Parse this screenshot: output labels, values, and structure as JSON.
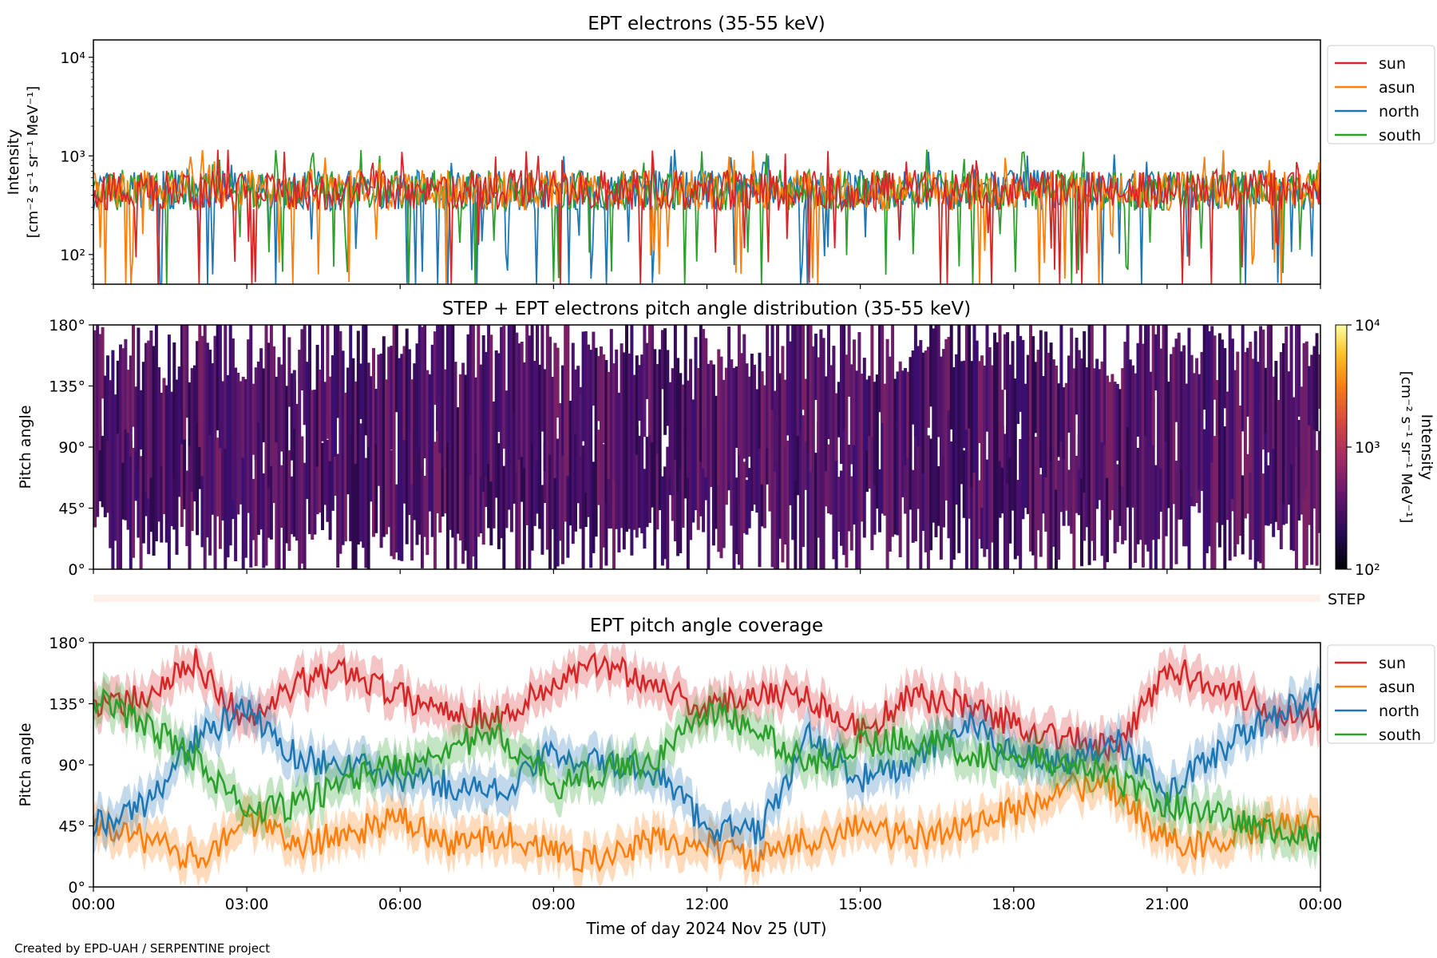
{
  "figure": {
    "footer": "Created by EPD-UAH / SERPENTINE project",
    "xlabel": "Time of day 2024 Nov 25 (UT)",
    "x_ticks": [
      "00:00",
      "03:00",
      "06:00",
      "09:00",
      "12:00",
      "15:00",
      "18:00",
      "21:00",
      "00:00"
    ]
  },
  "colors": {
    "sun": "#d62728",
    "asun": "#ff7f0e",
    "north": "#1f77b4",
    "south": "#2ca02c"
  },
  "chart_data": [
    {
      "type": "line",
      "title": "EPT electrons (35-55 keV)",
      "ylabel": "Intensity",
      "ylabel_unit": "[cm⁻² s⁻¹ sr⁻¹ MeV⁻¹]",
      "yscale": "log",
      "ylim": [
        50,
        15000
      ],
      "y_ticks": [
        "10²",
        "10³",
        "10⁴"
      ],
      "x_range_hours": [
        0,
        24
      ],
      "legend": [
        "sun",
        "asun",
        "north",
        "south"
      ],
      "legend_position": "outside-right",
      "series_typical_level": 450,
      "series_range": [
        50,
        1200
      ]
    },
    {
      "type": "heatmap",
      "title": "STEP + EPT electrons pitch angle distribution (35-55 keV)",
      "ylabel": "Pitch angle",
      "ylim": [
        0,
        180
      ],
      "y_ticks": [
        "0°",
        "45°",
        "90°",
        "135°",
        "180°"
      ],
      "colorbar_label": "Intensity",
      "colorbar_unit": "[cm⁻² s⁻¹ sr⁻¹ MeV⁻¹]",
      "colorbar_ticks": [
        "10²",
        "10³",
        "10⁴"
      ],
      "colormap": "inferno",
      "step_label": "STEP"
    },
    {
      "type": "line",
      "title": "EPT pitch angle coverage",
      "ylabel": "Pitch angle",
      "ylim": [
        0,
        180
      ],
      "y_ticks": [
        "0°",
        "45°",
        "90°",
        "135°",
        "180°"
      ],
      "legend": [
        "sun",
        "asun",
        "north",
        "south"
      ],
      "legend_position": "outside-right",
      "x_hours": [
        0,
        1,
        2,
        3,
        4,
        5,
        6,
        7,
        8,
        9,
        10,
        11,
        12,
        13,
        14,
        15,
        16,
        17,
        18,
        19,
        20,
        21,
        22,
        23,
        24
      ],
      "series": [
        {
          "name": "sun",
          "values": [
            130,
            140,
            165,
            120,
            150,
            160,
            140,
            130,
            125,
            150,
            165,
            150,
            130,
            145,
            140,
            115,
            140,
            135,
            120,
            110,
            100,
            160,
            150,
            130,
            125
          ]
        },
        {
          "name": "asun",
          "values": [
            50,
            35,
            20,
            50,
            30,
            40,
            50,
            30,
            40,
            25,
            20,
            35,
            30,
            20,
            35,
            45,
            35,
            45,
            55,
            75,
            70,
            35,
            30,
            45,
            45
          ]
        },
        {
          "name": "north",
          "values": [
            45,
            60,
            110,
            130,
            95,
            90,
            80,
            75,
            70,
            100,
            90,
            85,
            45,
            40,
            110,
            80,
            90,
            120,
            100,
            90,
            110,
            70,
            100,
            125,
            140
          ]
        },
        {
          "name": "south",
          "values": [
            140,
            120,
            95,
            55,
            60,
            80,
            90,
            105,
            110,
            75,
            85,
            95,
            130,
            115,
            90,
            105,
            110,
            100,
            95,
            90,
            80,
            60,
            55,
            40,
            35
          ]
        }
      ]
    }
  ]
}
